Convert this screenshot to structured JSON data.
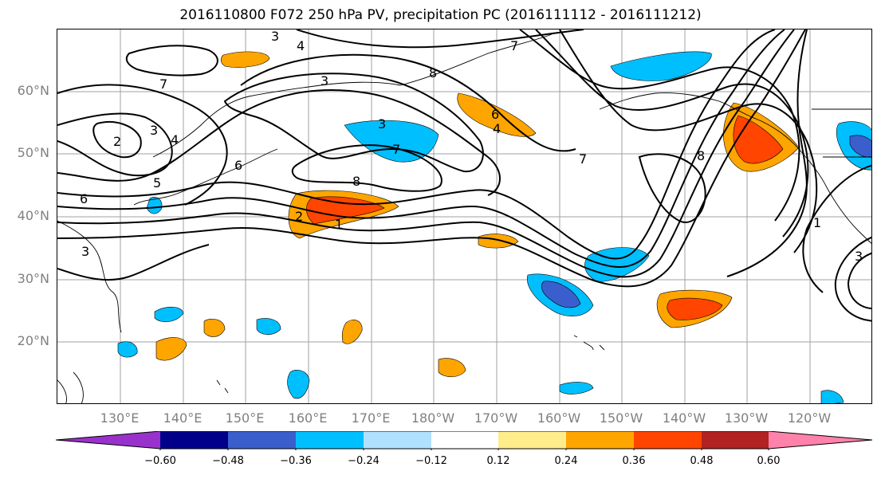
{
  "title": "2016110800 F072 250 hPa PV, precipitation PC (2016111112 - 2016111212)",
  "lat_labels": [
    "60°N",
    "50°N",
    "40°N",
    "30°N",
    "20°N"
  ],
  "lon_labels": [
    "130°E",
    "140°E",
    "150°E",
    "160°E",
    "170°E",
    "180°W",
    "170°W",
    "160°W",
    "150°W",
    "140°W",
    "130°W",
    "120°W"
  ],
  "colorbar": {
    "ticks": [
      "−0.60",
      "−0.48",
      "−0.36",
      "−0.24",
      "−0.12",
      "0.12",
      "0.24",
      "0.36",
      "0.48",
      "0.60"
    ],
    "colors": [
      "#9932cc",
      "#00008b",
      "#3a5fcd",
      "#00bfff",
      "#b0e2ff",
      "#ffffff",
      "#ffec8b",
      "#ffa500",
      "#ff4500",
      "#b22222",
      "#ff82ab"
    ]
  },
  "contour_labels": [
    "3",
    "4",
    "7",
    "2",
    "3",
    "4",
    "5",
    "6",
    "6",
    "3",
    "2",
    "1",
    "3",
    "7",
    "8",
    "3",
    "8",
    "6",
    "4",
    "7",
    "8",
    "7",
    "1",
    "3"
  ],
  "colors": {
    "contour": "#000000",
    "coast": "#000000",
    "grid": "#a0a0a0",
    "axis_text": "#808080"
  }
}
